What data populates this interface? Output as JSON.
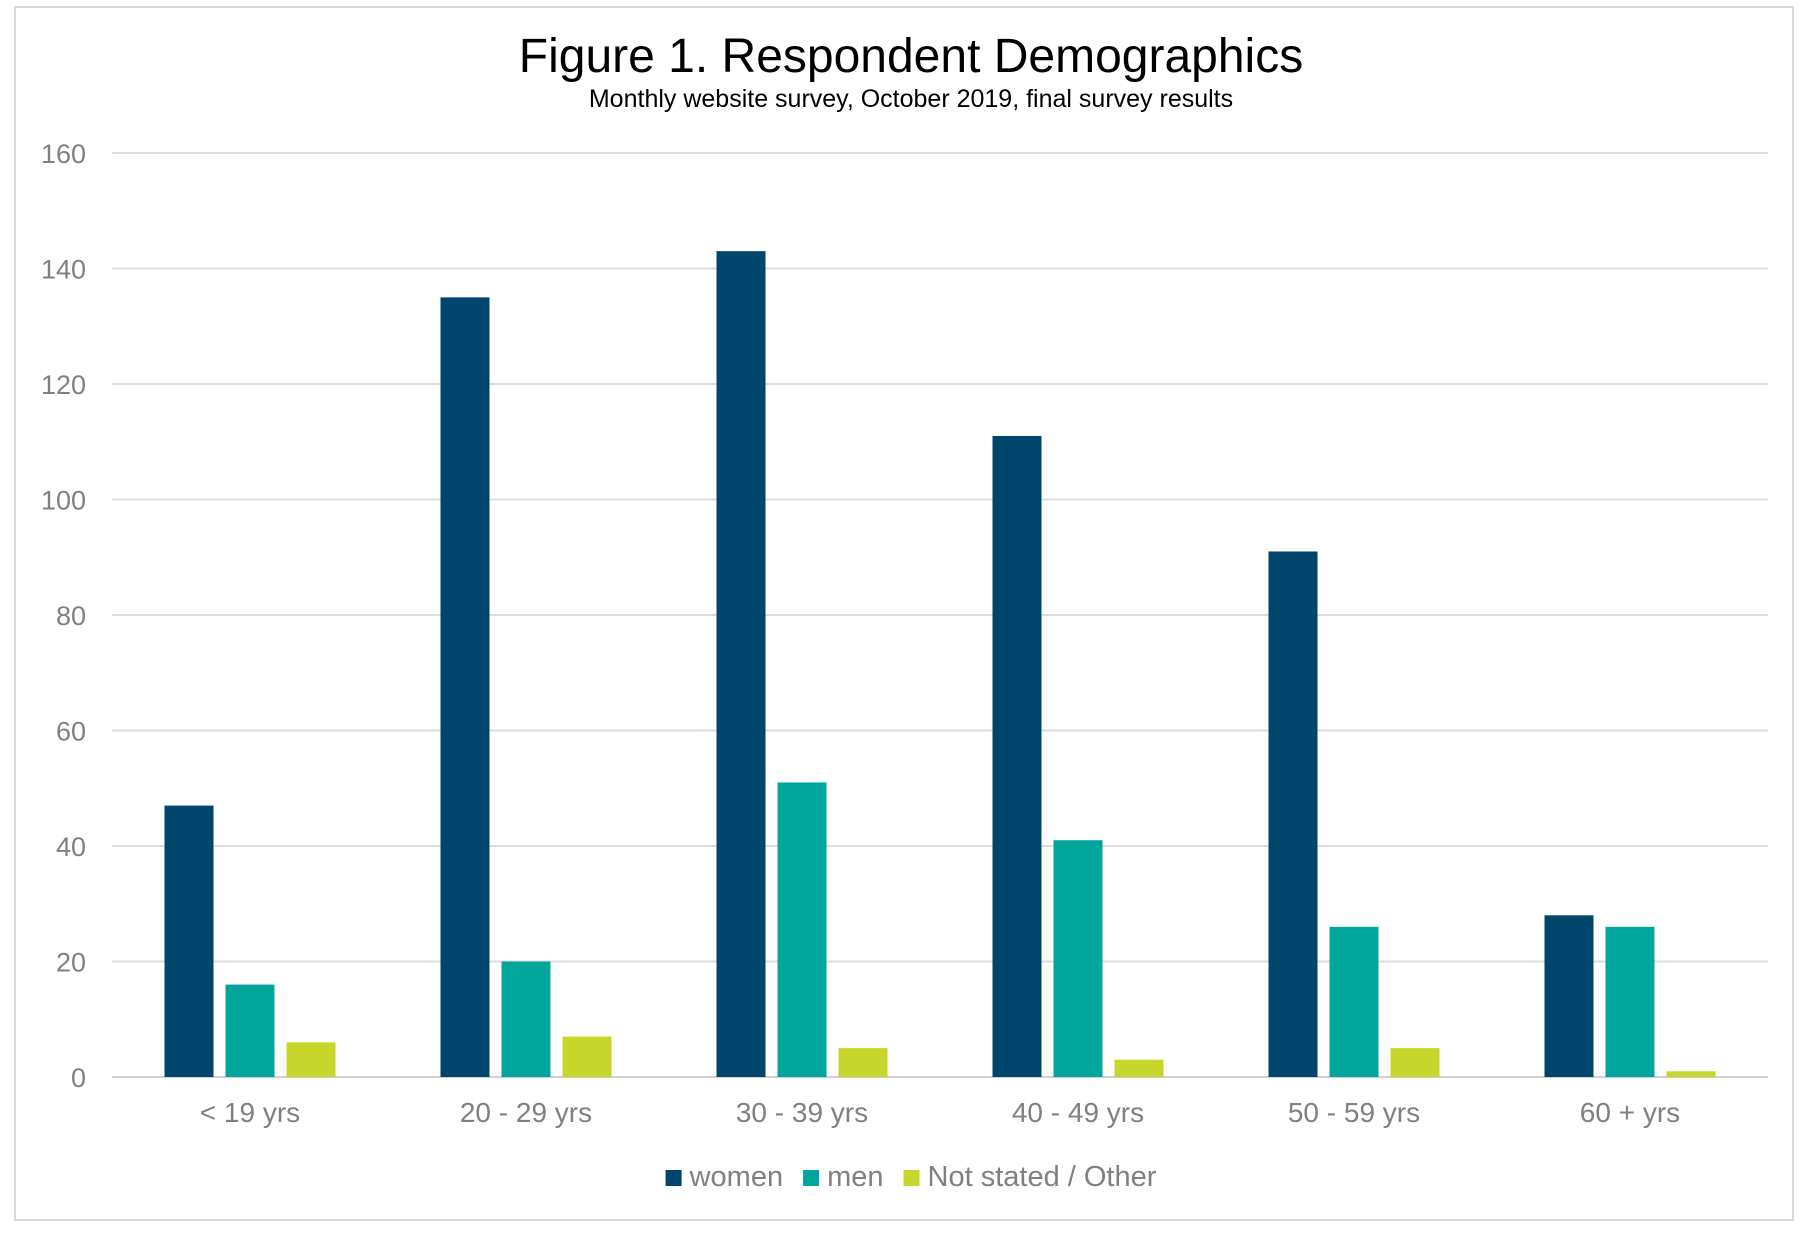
{
  "chart_data": {
    "type": "bar",
    "title": "Figure 1. Respondent Demographics",
    "subtitle": "Monthly website survey, October 2019, final survey results",
    "categories": [
      "< 19 yrs",
      "20 - 29 yrs",
      "30 - 39 yrs",
      "40 - 49 yrs",
      "50 - 59 yrs",
      "60 + yrs"
    ],
    "series": [
      {
        "name": "women",
        "color": "#00456b",
        "values": [
          47,
          135,
          143,
          111,
          91,
          28
        ]
      },
      {
        "name": "men",
        "color": "#00a59b",
        "values": [
          16,
          20,
          51,
          41,
          26,
          26
        ]
      },
      {
        "name": "Not stated / Other",
        "color": "#c7d62b",
        "values": [
          6,
          7,
          5,
          3,
          5,
          1
        ]
      }
    ],
    "ylim": [
      0,
      160
    ],
    "yticks": [
      0,
      20,
      40,
      60,
      80,
      100,
      120,
      140,
      160
    ],
    "grid": true,
    "legend": "bottom-center"
  }
}
